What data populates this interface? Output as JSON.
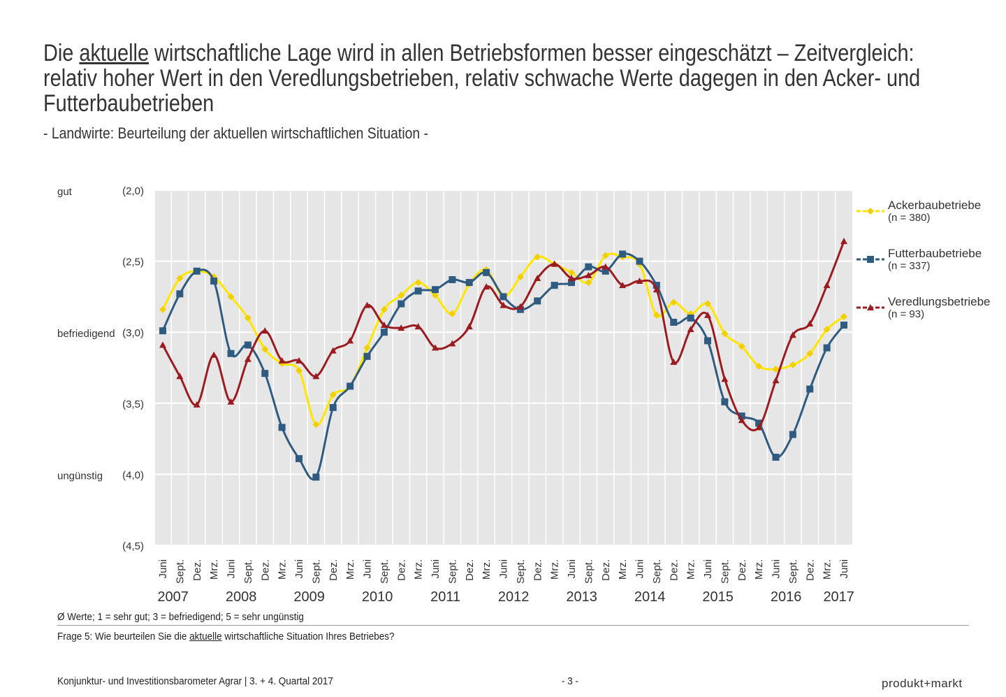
{
  "chart_data": {
    "type": "line",
    "title_parts": [
      "Die ",
      "aktuelle",
      " wirtschaftliche Lage wird in allen Betriebsformen besser eingeschätzt – Zeitvergleich: relativ hoher Wert in den Veredlungsbetrieben, relativ schwache Werte dagegen in den Acker- und Futterbaubetrieben"
    ],
    "subtitle": "- Landwirte: Beurteilung der aktuellen wirtschaftlichen Situation -",
    "categories": [
      "Juni",
      "Sept.",
      "Dez.",
      "Mrz.",
      "Juni",
      "Sept.",
      "Dez.",
      "Mrz.",
      "Juni",
      "Sept.",
      "Dez.",
      "Mrz.",
      "Juni",
      "Sept.",
      "Dez.",
      "Mrz.",
      "Juni",
      "Sept.",
      "Dez.",
      "Mrz.",
      "Juni",
      "Sept.",
      "Dez.",
      "Mrz.",
      "Juni",
      "Sept.",
      "Dez.",
      "Mrz.",
      "Juni",
      "Sept.",
      "Dez.",
      "Mrz.",
      "Juni",
      "Sept.",
      "Dez.",
      "Mrz.",
      "Juni",
      "Sept.",
      "Dez.",
      "Mrz.",
      "Juni"
    ],
    "years": [
      "2007",
      "2008",
      "2009",
      "2010",
      "2011",
      "2012",
      "2013",
      "2014",
      "2015",
      "2016",
      "2017"
    ],
    "ylim": [
      2.0,
      4.5
    ],
    "y_reversed": true,
    "yticks": [
      {
        "value": 2.0,
        "label": "(2,0)"
      },
      {
        "value": 2.5,
        "label": "(2,5)"
      },
      {
        "value": 3.0,
        "label": "(3,0)"
      },
      {
        "value": 3.5,
        "label": "(3,5)"
      },
      {
        "value": 4.0,
        "label": "(4,0)"
      },
      {
        "value": 4.5,
        "label": "(4,5)"
      }
    ],
    "y_side_labels": [
      {
        "value": 2.0,
        "label": "gut"
      },
      {
        "value": 3.0,
        "label": "befriedigend"
      },
      {
        "value": 4.0,
        "label": "ungünstig"
      }
    ],
    "grid": true,
    "legend": "right",
    "series": [
      {
        "name": "Ackerbaubetriebe",
        "n": "(n = 380)",
        "color": "#ffe600",
        "marker_color": "#f2cf00",
        "marker": "diamond",
        "values": [
          2.84,
          2.62,
          2.57,
          2.61,
          2.75,
          2.9,
          3.12,
          3.22,
          3.27,
          3.65,
          3.44,
          3.38,
          3.11,
          2.84,
          2.74,
          2.65,
          2.74,
          2.87,
          2.66,
          2.56,
          2.75,
          2.61,
          2.47,
          2.52,
          2.58,
          2.65,
          2.46,
          2.47,
          2.52,
          2.88,
          2.79,
          2.87,
          2.8,
          3.01,
          3.1,
          3.24,
          3.26,
          3.23,
          3.15,
          2.98,
          2.89
        ]
      },
      {
        "name": "Futterbaubetriebe",
        "n": "(n = 337)",
        "color": "#2f5b80",
        "marker_color": "#2f5b80",
        "marker": "square",
        "values": [
          2.99,
          2.73,
          2.57,
          2.64,
          3.15,
          3.09,
          3.29,
          3.67,
          3.89,
          4.02,
          3.53,
          3.38,
          3.17,
          3.0,
          2.8,
          2.71,
          2.7,
          2.63,
          2.65,
          2.58,
          2.75,
          2.84,
          2.78,
          2.67,
          2.65,
          2.54,
          2.57,
          2.45,
          2.5,
          2.67,
          2.93,
          2.9,
          3.06,
          3.49,
          3.59,
          3.64,
          3.88,
          3.72,
          3.4,
          3.11,
          2.95
        ]
      },
      {
        "name": "Veredlungsbetriebe",
        "n": "(n = 93)",
        "color": "#9b1c20",
        "marker_color": "#9b1c20",
        "marker": "triangle",
        "values": [
          3.09,
          3.31,
          3.51,
          3.16,
          3.49,
          3.19,
          2.99,
          3.2,
          3.2,
          3.31,
          3.13,
          3.06,
          2.81,
          2.95,
          2.97,
          2.96,
          3.11,
          3.08,
          2.96,
          2.68,
          2.81,
          2.82,
          2.62,
          2.52,
          2.62,
          2.6,
          2.54,
          2.67,
          2.64,
          2.7,
          3.21,
          2.98,
          2.88,
          3.33,
          3.62,
          3.67,
          3.34,
          3.02,
          2.94,
          2.67,
          2.36
        ]
      }
    ],
    "note": "Ø Werte; 1 = sehr gut; 3 = befriedigend; 5 = sehr ungünstig",
    "question_parts": [
      "Frage 5: Wie beurteilen Sie die ",
      "aktuelle",
      " wirtschaftliche Situation Ihres Betriebes?"
    ],
    "footer": "Konjunktur- und Investitionsbarometer Agrar | 3. + 4. Quartal 2017",
    "page": "- 3 -",
    "brand": "produkt+markt"
  }
}
